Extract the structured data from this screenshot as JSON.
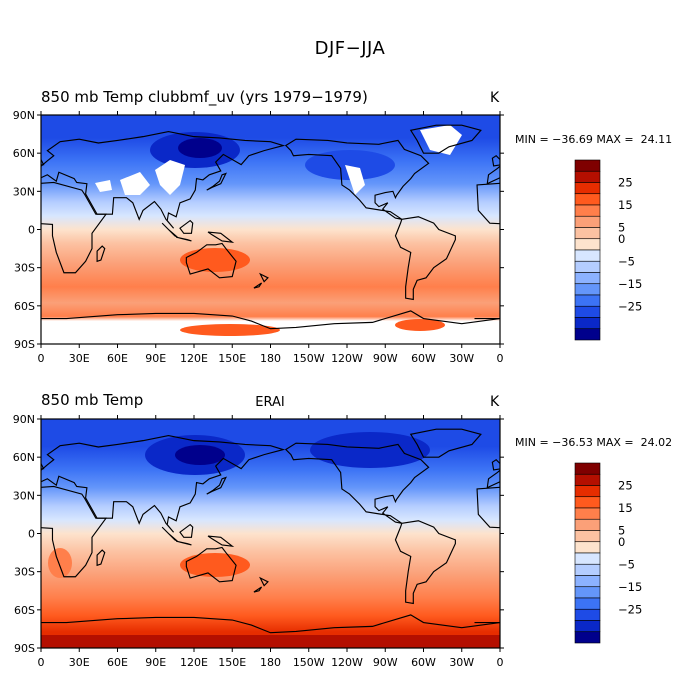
{
  "figure": {
    "title": "DJF−JJA"
  },
  "axes": {
    "lat_labels": [
      "90N",
      "60N",
      "30N",
      "0",
      "30S",
      "60S",
      "90S"
    ],
    "lon_labels": [
      "0",
      "30E",
      "60E",
      "90E",
      "120E",
      "150E",
      "180",
      "150W",
      "120W",
      "90W",
      "60W",
      "30W",
      "0"
    ]
  },
  "colorbar": {
    "labels": [
      "25",
      "15",
      "5",
      "0",
      "−5",
      "−15",
      "−25"
    ],
    "colors": [
      "#7f0000",
      "#b40f00",
      "#e62d00",
      "#ff5a1e",
      "#ff7f4b",
      "#fba078",
      "#fcc2a2",
      "#fde3cd",
      "#d7e6ff",
      "#b4cdff",
      "#8cb2ff",
      "#6496fa",
      "#3c73f5",
      "#1e4be6",
      "#0a28c8",
      "#00008c"
    ]
  },
  "panels": [
    {
      "title_left": "850 mb Temp clubbmf_uv (yrs 1979−1979)",
      "title_center": "",
      "units": "K",
      "min_max_text": "MIN = −36.69 MAX =  24.11",
      "min": -36.69,
      "max": 24.11
    },
    {
      "title_left": "850 mb Temp",
      "title_center": "ERAI",
      "units": "K",
      "min_max_text": "MIN = −36.53 MAX =  24.02",
      "min": -36.53,
      "max": 24.02
    }
  ]
}
